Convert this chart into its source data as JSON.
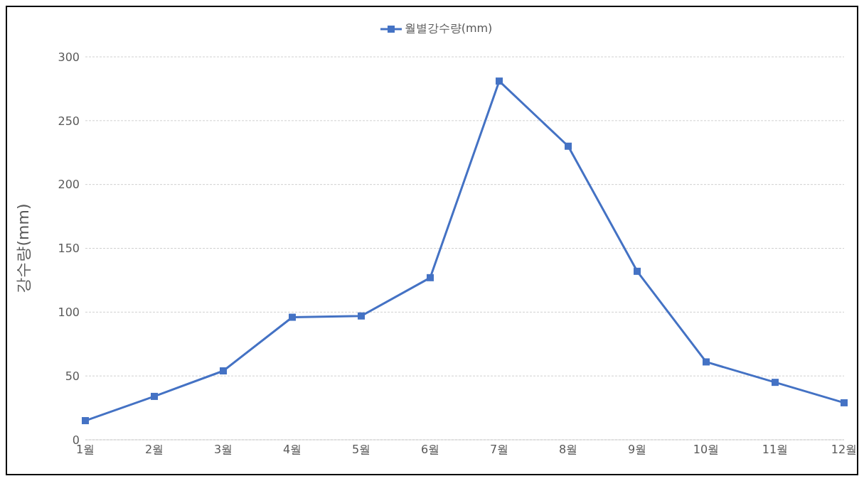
{
  "chart_data": {
    "type": "line",
    "ylabel": "강수량(mm)",
    "categories": [
      "1월",
      "2월",
      "3월",
      "4월",
      "5월",
      "6월",
      "7월",
      "8월",
      "9월",
      "10월",
      "11월",
      "12월"
    ],
    "series": [
      {
        "name": "월별강수량(mm)",
        "color": "#4472c4",
        "values": [
          15,
          34,
          54,
          96,
          97,
          127,
          281,
          230,
          132,
          61,
          45,
          29
        ]
      }
    ],
    "ylim": [
      0,
      300
    ],
    "yticks": [
      0,
      50,
      100,
      150,
      200,
      250,
      300
    ],
    "grid": "y",
    "legend": "top",
    "marker": "square",
    "line_style": "solid"
  }
}
